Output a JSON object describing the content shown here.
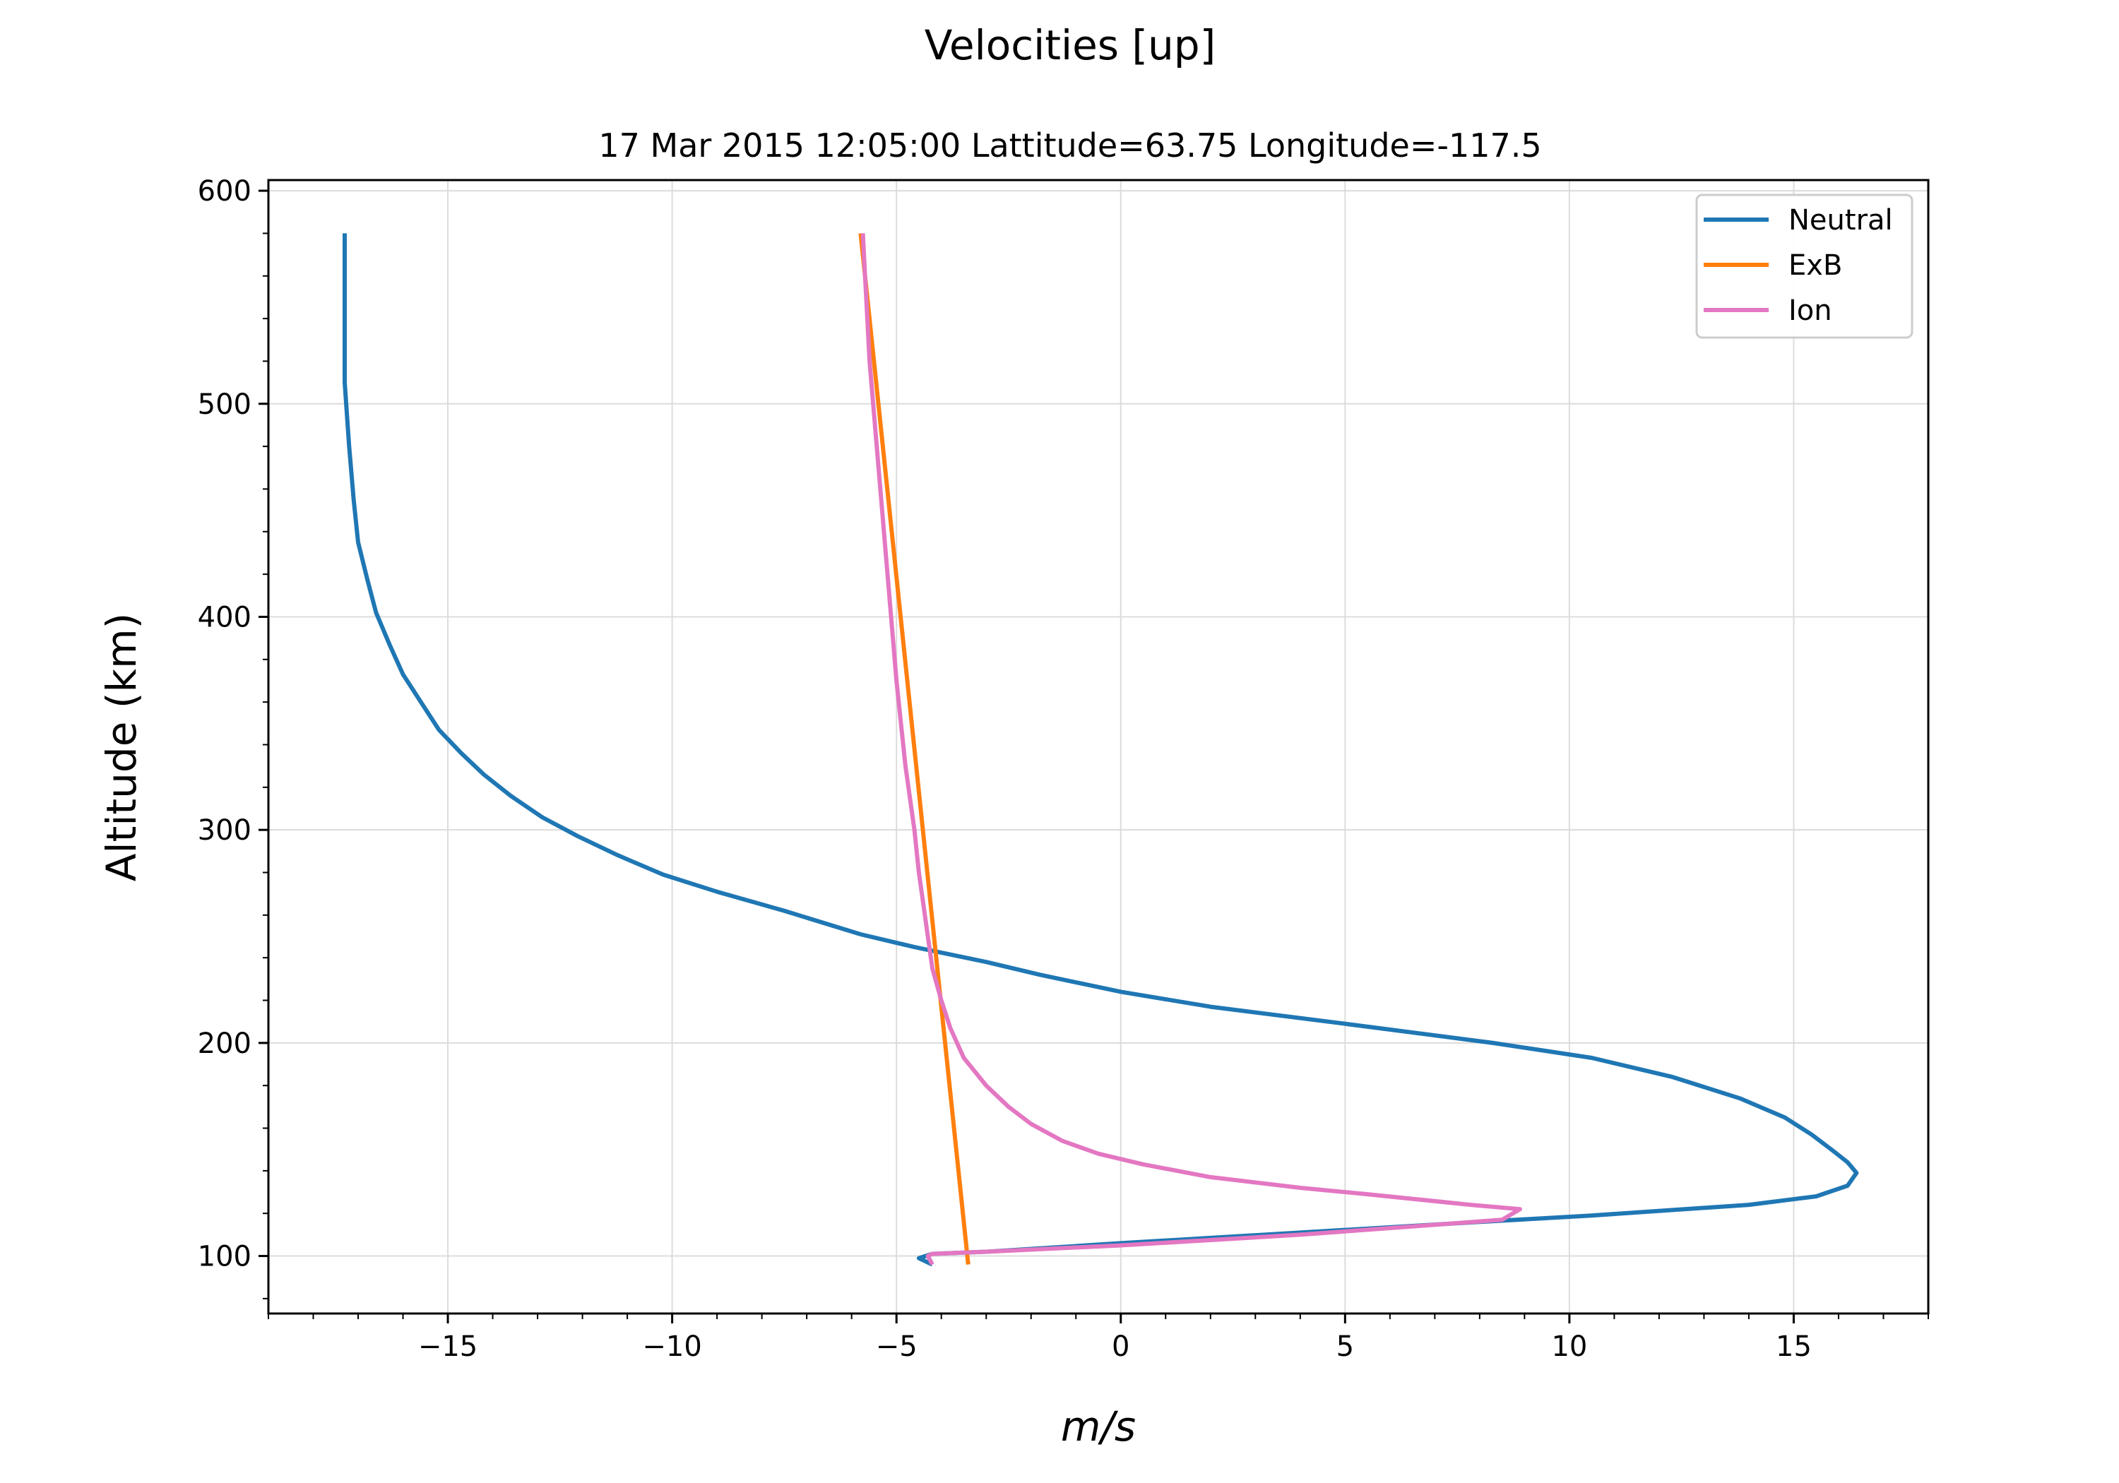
{
  "chart_data": {
    "type": "line",
    "suptitle": "Velocities [up]",
    "title": "17 Mar 2015 12:05:00 Lattitude=63.75 Longitude=-117.5",
    "xlabel": "m/s",
    "ylabel": "Altitude (km)",
    "xlim": [
      -19,
      18
    ],
    "ylim": [
      73,
      605
    ],
    "xticks": [
      -15,
      -10,
      -5,
      0,
      5,
      10,
      15
    ],
    "xtick_labels": [
      "−15",
      "−10",
      "−5",
      "0",
      "5",
      "10",
      "15"
    ],
    "yticks": [
      100,
      200,
      300,
      400,
      500,
      600
    ],
    "ytick_labels": [
      "100",
      "200",
      "300",
      "400",
      "500",
      "600"
    ],
    "grid": true,
    "legend_position": "top-right",
    "series": [
      {
        "name": "Neutral",
        "color": "#1f77b4",
        "points": [
          [
            -4.2,
            96
          ],
          [
            -4.5,
            99
          ],
          [
            -4.2,
            101
          ],
          [
            -3.0,
            102
          ],
          [
            0.0,
            106
          ],
          [
            4.0,
            111
          ],
          [
            8.0,
            116
          ],
          [
            10.5,
            119
          ],
          [
            14.0,
            124
          ],
          [
            15.5,
            128
          ],
          [
            16.2,
            133
          ],
          [
            16.4,
            139
          ],
          [
            16.2,
            144
          ],
          [
            15.9,
            149
          ],
          [
            15.4,
            157
          ],
          [
            14.8,
            165
          ],
          [
            13.8,
            174
          ],
          [
            12.3,
            184
          ],
          [
            10.5,
            193
          ],
          [
            8.3,
            200
          ],
          [
            5.0,
            209
          ],
          [
            2.0,
            217
          ],
          [
            0.0,
            224
          ],
          [
            -1.8,
            232
          ],
          [
            -3.0,
            238
          ],
          [
            -4.6,
            245
          ],
          [
            -5.8,
            251
          ],
          [
            -7.5,
            262
          ],
          [
            -9.0,
            271
          ],
          [
            -10.2,
            279
          ],
          [
            -11.2,
            288
          ],
          [
            -12.1,
            297
          ],
          [
            -12.9,
            306
          ],
          [
            -13.6,
            316
          ],
          [
            -14.2,
            326
          ],
          [
            -14.7,
            336
          ],
          [
            -15.2,
            347
          ],
          [
            -15.6,
            360
          ],
          [
            -16.0,
            373
          ],
          [
            -16.3,
            387
          ],
          [
            -16.6,
            402
          ],
          [
            -16.8,
            418
          ],
          [
            -17.0,
            435
          ],
          [
            -17.1,
            455
          ],
          [
            -17.2,
            480
          ],
          [
            -17.3,
            510
          ],
          [
            -17.3,
            545
          ],
          [
            -17.3,
            580
          ]
        ]
      },
      {
        "name": "ExB",
        "color": "#ff7f0e",
        "points": [
          [
            -3.4,
            96
          ],
          [
            -5.8,
            580
          ]
        ]
      },
      {
        "name": "Ion",
        "color": "#e377c2",
        "points": [
          [
            -4.2,
            96
          ],
          [
            -4.3,
            100
          ],
          [
            -4.2,
            101
          ],
          [
            -3.0,
            102
          ],
          [
            0.0,
            105
          ],
          [
            4.0,
            110
          ],
          [
            8.5,
            117
          ],
          [
            8.9,
            122
          ],
          [
            7.8,
            124
          ],
          [
            5.5,
            129
          ],
          [
            4.0,
            132
          ],
          [
            2.0,
            137
          ],
          [
            0.5,
            143
          ],
          [
            -0.5,
            148
          ],
          [
            -1.3,
            154
          ],
          [
            -2.0,
            162
          ],
          [
            -2.5,
            170
          ],
          [
            -3.0,
            180
          ],
          [
            -3.5,
            193
          ],
          [
            -3.8,
            207
          ],
          [
            -4.0,
            220
          ],
          [
            -4.2,
            235
          ],
          [
            -4.3,
            250
          ],
          [
            -4.4,
            265
          ],
          [
            -4.5,
            280
          ],
          [
            -4.6,
            300
          ],
          [
            -4.8,
            330
          ],
          [
            -5.0,
            370
          ],
          [
            -5.2,
            420
          ],
          [
            -5.4,
            470
          ],
          [
            -5.6,
            520
          ],
          [
            -5.7,
            560
          ],
          [
            -5.75,
            580
          ]
        ]
      }
    ]
  }
}
